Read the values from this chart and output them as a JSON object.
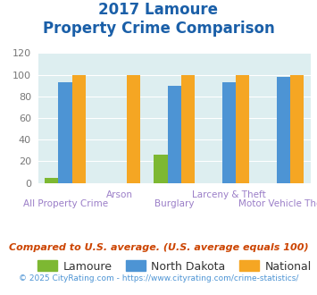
{
  "title_line1": "2017 Lamoure",
  "title_line2": "Property Crime Comparison",
  "categories": [
    "All Property Crime",
    "Arson",
    "Burglary",
    "Larceny & Theft",
    "Motor Vehicle Theft"
  ],
  "lamoure": [
    5,
    0,
    26,
    0,
    0
  ],
  "north_dakota": [
    93,
    0,
    90,
    93,
    98
  ],
  "national": [
    100,
    100,
    100,
    100,
    100
  ],
  "lamoure_color": "#7db832",
  "north_dakota_color": "#4d94d4",
  "national_color": "#f5a623",
  "title_color": "#1a5fa8",
  "xlabel_top_color": "#9b7ec8",
  "xlabel_bot_color": "#9b7ec8",
  "ylabel_color": "#777777",
  "footnote1": "Compared to U.S. average. (U.S. average equals 100)",
  "footnote2": "© 2025 CityRating.com - https://www.cityrating.com/crime-statistics/",
  "footnote1_color": "#cc4400",
  "footnote2_color": "#4d94d4",
  "ylim": [
    0,
    120
  ],
  "yticks": [
    0,
    20,
    40,
    60,
    80,
    100,
    120
  ],
  "bar_width": 0.25,
  "group_positions": [
    0,
    1,
    2,
    3,
    4
  ],
  "cat_labels_top": [
    "",
    "Arson",
    "",
    "Larceny & Theft",
    ""
  ],
  "cat_labels_bot": [
    "All Property Crime",
    "",
    "Burglary",
    "",
    "Motor Vehicle Theft"
  ],
  "background_color": "#ddeef0",
  "grid_color": "#ffffff"
}
